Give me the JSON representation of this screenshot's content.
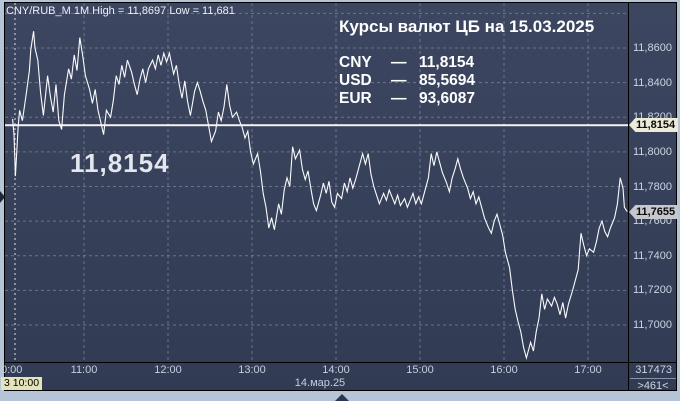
{
  "window": {
    "header": "CNY/RUB_M 1M High = 11,8697 Low = 11,681"
  },
  "overlay": {
    "title": "Курсы валют ЦБ на 15.03.2025",
    "dash": "—",
    "rates": [
      {
        "code": "CNY",
        "value": "11,8154"
      },
      {
        "code": "USD",
        "value": "85,5694"
      },
      {
        "code": "EUR",
        "value": "93,6087"
      }
    ],
    "watermark": "11,8154"
  },
  "axes": {
    "price_ticks": [
      "11,8600",
      "11,8400",
      "11,8200",
      "11,8000",
      "11,7800",
      "11,7600",
      "11,7400",
      "11,7200",
      "11,7000"
    ],
    "price_tick_values": [
      11.86,
      11.84,
      11.82,
      11.8,
      11.78,
      11.76,
      11.74,
      11.72,
      11.7
    ],
    "grid_extra_values": [
      11.88
    ],
    "time_ticks": [
      "0:00",
      "11:00",
      "12:00",
      "13:00",
      "14:00",
      "15:00",
      "16:00",
      "17:00"
    ],
    "time_tick_hours": [
      10,
      11,
      12,
      13,
      14,
      15,
      16,
      17
    ],
    "date_label": "14.мар.25",
    "level_tag": "11,8154",
    "last_price_tag": "11,7655",
    "start_tag": "3 10:00"
  },
  "footer_right": {
    "volume": "317473",
    "counter": ">461<"
  },
  "colors": {
    "plot_bg": "#313b53",
    "frame": "#b6c4d8",
    "grid": "#7d87a0",
    "price_line": "#fbfbfd",
    "level_line": "#f2f2f2",
    "axis_text": "#ccd4e2",
    "level_tag_bg": "#ebebd8",
    "last_tag_bg": "#c6c8cc",
    "start_tag_bg": "#e4e4bc"
  },
  "chart_data": {
    "type": "line",
    "title": "Курсы валют ЦБ на 15.03.2025",
    "instrument": "CNY/RUB_M",
    "timeframe": "1M",
    "high": 11.8697,
    "low": 11.681,
    "level_line": 11.8154,
    "last": 11.7655,
    "xlabel": "",
    "ylabel": "",
    "x_range": [
      "10:00",
      "17:30"
    ],
    "ylim": [
      11.675,
      11.882
    ],
    "grid": true,
    "points": [
      [
        "10:09",
        11.819
      ],
      [
        "10:10",
        11.81
      ],
      [
        "10:11",
        11.786
      ],
      [
        "10:13",
        11.815
      ],
      [
        "10:14",
        11.824
      ],
      [
        "10:16",
        11.818
      ],
      [
        "10:19",
        11.835
      ],
      [
        "10:21",
        11.847
      ],
      [
        "10:22",
        11.859
      ],
      [
        "10:24",
        11.8697
      ],
      [
        "10:25",
        11.86
      ],
      [
        "10:27",
        11.853
      ],
      [
        "10:29",
        11.834
      ],
      [
        "10:31",
        11.821
      ],
      [
        "10:34",
        11.844
      ],
      [
        "10:36",
        11.832
      ],
      [
        "10:38",
        11.823
      ],
      [
        "10:40",
        11.839
      ],
      [
        "10:42",
        11.818
      ],
      [
        "10:44",
        11.813
      ],
      [
        "10:46",
        11.833
      ],
      [
        "10:49",
        11.848
      ],
      [
        "10:51",
        11.842
      ],
      [
        "10:53",
        11.856
      ],
      [
        "10:55",
        11.847
      ],
      [
        "10:57",
        11.866
      ],
      [
        "10:59",
        11.856
      ],
      [
        "11:01",
        11.844
      ],
      [
        "11:04",
        11.836
      ],
      [
        "11:06",
        11.828
      ],
      [
        "11:08",
        11.836
      ],
      [
        "11:10",
        11.824
      ],
      [
        "11:12",
        11.817
      ],
      [
        "11:14",
        11.81
      ],
      [
        "11:16",
        11.824
      ],
      [
        "11:19",
        11.82
      ],
      [
        "11:21",
        11.83
      ],
      [
        "11:23",
        11.844
      ],
      [
        "11:25",
        11.839
      ],
      [
        "11:27",
        11.85
      ],
      [
        "11:29",
        11.843
      ],
      [
        "11:31",
        11.853
      ],
      [
        "11:34",
        11.846
      ],
      [
        "11:36",
        11.839
      ],
      [
        "11:38",
        11.833
      ],
      [
        "11:40",
        11.842
      ],
      [
        "11:42",
        11.848
      ],
      [
        "11:44",
        11.84
      ],
      [
        "11:46",
        11.848
      ],
      [
        "11:49",
        11.853
      ],
      [
        "11:51",
        11.848
      ],
      [
        "11:53",
        11.856
      ],
      [
        "11:55",
        11.85
      ],
      [
        "11:57",
        11.857
      ],
      [
        "11:59",
        11.852
      ],
      [
        "12:01",
        11.857
      ],
      [
        "12:04",
        11.845
      ],
      [
        "12:06",
        11.85
      ],
      [
        "12:08",
        11.839
      ],
      [
        "12:10",
        11.831
      ],
      [
        "12:12",
        11.841
      ],
      [
        "12:14",
        11.829
      ],
      [
        "12:16",
        11.821
      ],
      [
        "12:19",
        11.835
      ],
      [
        "12:21",
        11.84
      ],
      [
        "12:23",
        11.835
      ],
      [
        "12:25",
        11.829
      ],
      [
        "12:27",
        11.824
      ],
      [
        "12:29",
        11.815
      ],
      [
        "12:31",
        11.806
      ],
      [
        "12:34",
        11.812
      ],
      [
        "12:36",
        11.823
      ],
      [
        "12:38",
        11.818
      ],
      [
        "12:40",
        11.826
      ],
      [
        "12:42",
        11.839
      ],
      [
        "12:44",
        11.827
      ],
      [
        "12:46",
        11.82
      ],
      [
        "12:49",
        11.823
      ],
      [
        "12:51",
        11.818
      ],
      [
        "12:53",
        11.814
      ],
      [
        "12:55",
        11.808
      ],
      [
        "12:57",
        11.812
      ],
      [
        "12:59",
        11.8
      ],
      [
        "13:01",
        11.793
      ],
      [
        "13:04",
        11.799
      ],
      [
        "13:06",
        11.789
      ],
      [
        "13:08",
        11.776
      ],
      [
        "13:10",
        11.768
      ],
      [
        "13:12",
        11.756
      ],
      [
        "13:14",
        11.762
      ],
      [
        "13:16",
        11.755
      ],
      [
        "13:19",
        11.77
      ],
      [
        "13:21",
        11.764
      ],
      [
        "13:23",
        11.778
      ],
      [
        "13:25",
        11.785
      ],
      [
        "13:27",
        11.78
      ],
      [
        "13:29",
        11.803
      ],
      [
        "13:31",
        11.796
      ],
      [
        "13:34",
        11.801
      ],
      [
        "13:36",
        11.79
      ],
      [
        "13:38",
        11.784
      ],
      [
        "13:40",
        11.789
      ],
      [
        "13:42",
        11.779
      ],
      [
        "13:44",
        11.77
      ],
      [
        "13:46",
        11.766
      ],
      [
        "13:49",
        11.775
      ],
      [
        "13:51",
        11.782
      ],
      [
        "13:53",
        11.776
      ],
      [
        "13:55",
        11.783
      ],
      [
        "13:57",
        11.771
      ],
      [
        "13:59",
        11.768
      ],
      [
        "14:01",
        11.776
      ],
      [
        "14:04",
        11.773
      ],
      [
        "14:06",
        11.782
      ],
      [
        "14:08",
        11.777
      ],
      [
        "14:10",
        11.785
      ],
      [
        "14:12",
        11.779
      ],
      [
        "14:14",
        11.784
      ],
      [
        "14:16",
        11.79
      ],
      [
        "14:19",
        11.799
      ],
      [
        "14:21",
        11.793
      ],
      [
        "14:23",
        11.799
      ],
      [
        "14:25",
        11.787
      ],
      [
        "14:27",
        11.78
      ],
      [
        "14:29",
        11.775
      ],
      [
        "14:31",
        11.77
      ],
      [
        "14:34",
        11.776
      ],
      [
        "14:36",
        11.772
      ],
      [
        "14:38",
        11.778
      ],
      [
        "14:40",
        11.774
      ],
      [
        "14:42",
        11.77
      ],
      [
        "14:44",
        11.775
      ],
      [
        "14:46",
        11.769
      ],
      [
        "14:49",
        11.773
      ],
      [
        "14:51",
        11.768
      ],
      [
        "14:53",
        11.772
      ],
      [
        "14:55",
        11.776
      ],
      [
        "14:57",
        11.77
      ],
      [
        "14:59",
        11.774
      ],
      [
        "15:01",
        11.77
      ],
      [
        "15:04",
        11.779
      ],
      [
        "15:06",
        11.785
      ],
      [
        "15:08",
        11.799
      ],
      [
        "15:10",
        11.792
      ],
      [
        "15:12",
        11.8
      ],
      [
        "15:14",
        11.794
      ],
      [
        "15:16",
        11.788
      ],
      [
        "15:19",
        11.782
      ],
      [
        "15:21",
        11.777
      ],
      [
        "15:23",
        11.785
      ],
      [
        "15:25",
        11.79
      ],
      [
        "15:27",
        11.796
      ],
      [
        "15:29",
        11.79
      ],
      [
        "15:31",
        11.785
      ],
      [
        "15:34",
        11.779
      ],
      [
        "15:36",
        11.773
      ],
      [
        "15:38",
        11.777
      ],
      [
        "15:40",
        11.77
      ],
      [
        "15:42",
        11.774
      ],
      [
        "15:44",
        11.768
      ],
      [
        "15:46",
        11.762
      ],
      [
        "15:49",
        11.756
      ],
      [
        "15:51",
        11.753
      ],
      [
        "15:53",
        11.76
      ],
      [
        "15:55",
        11.764
      ],
      [
        "15:57",
        11.758
      ],
      [
        "15:59",
        11.752
      ],
      [
        "16:01",
        11.742
      ],
      [
        "16:04",
        11.733
      ],
      [
        "16:06",
        11.72
      ],
      [
        "16:08",
        11.709
      ],
      [
        "16:10",
        11.702
      ],
      [
        "16:12",
        11.696
      ],
      [
        "16:14",
        11.687
      ],
      [
        "16:16",
        11.681
      ],
      [
        "16:19",
        11.69
      ],
      [
        "16:21",
        11.685
      ],
      [
        "16:23",
        11.696
      ],
      [
        "16:25",
        11.704
      ],
      [
        "16:27",
        11.718
      ],
      [
        "16:29",
        11.709
      ],
      [
        "16:31",
        11.715
      ],
      [
        "16:34",
        11.711
      ],
      [
        "16:36",
        11.716
      ],
      [
        "16:38",
        11.712
      ],
      [
        "16:40",
        11.706
      ],
      [
        "16:42",
        11.713
      ],
      [
        "16:44",
        11.704
      ],
      [
        "16:46",
        11.712
      ],
      [
        "16:49",
        11.72
      ],
      [
        "16:51",
        11.726
      ],
      [
        "16:53",
        11.732
      ],
      [
        "16:55",
        11.753
      ],
      [
        "16:57",
        11.746
      ],
      [
        "16:59",
        11.74
      ],
      [
        "17:01",
        11.744
      ],
      [
        "17:04",
        11.742
      ],
      [
        "17:06",
        11.748
      ],
      [
        "17:08",
        11.756
      ],
      [
        "17:10",
        11.76
      ],
      [
        "17:12",
        11.754
      ],
      [
        "17:14",
        11.751
      ],
      [
        "17:16",
        11.756
      ],
      [
        "17:19",
        11.762
      ],
      [
        "17:21",
        11.77
      ],
      [
        "17:23",
        11.785
      ],
      [
        "17:25",
        11.779
      ],
      [
        "17:26",
        11.768
      ],
      [
        "17:28",
        11.7655
      ]
    ]
  }
}
